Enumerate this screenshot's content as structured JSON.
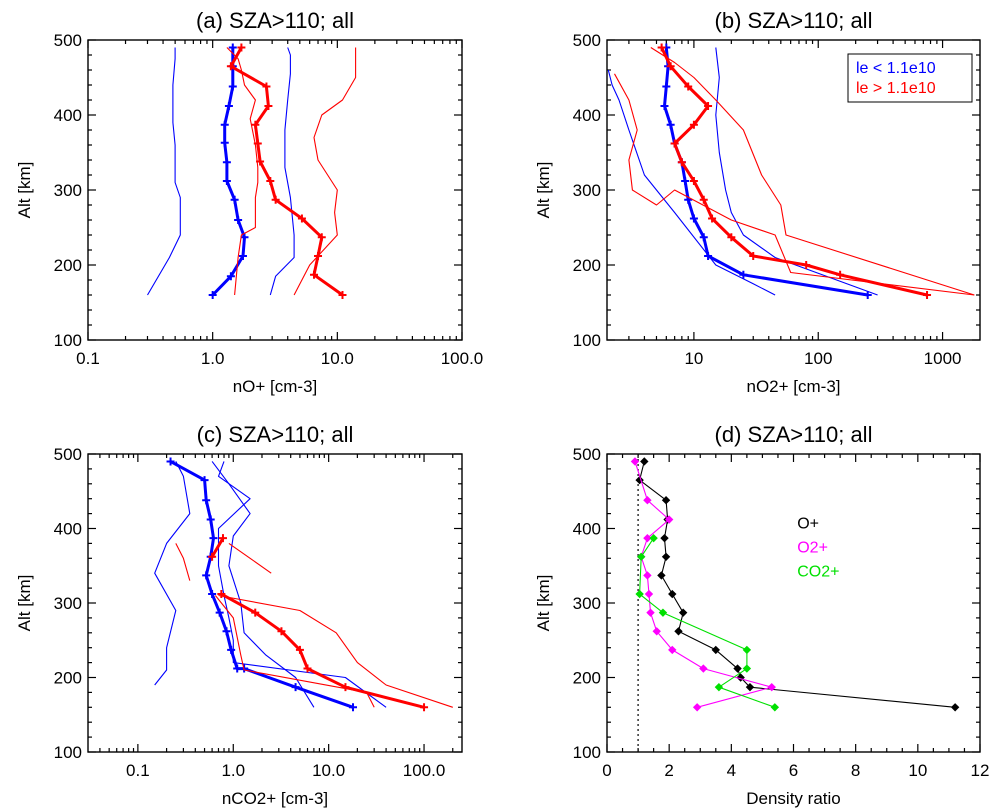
{
  "colors": {
    "blue": "#0000ff",
    "red": "#ff0000",
    "black": "#000000",
    "magenta": "#ff00ff",
    "green": "#00e000"
  },
  "chart_data": [
    {
      "type": "line",
      "title": "(a) SZA>110; all",
      "xlabel": "nO+ [cm-3]",
      "ylabel": "Alt [km]",
      "xscale": "log",
      "xlim": [
        0.1,
        100
      ],
      "ylim": [
        100,
        500
      ],
      "xticks": [
        0.1,
        1,
        10,
        100
      ],
      "xtick_labels": [
        "0.1",
        "1.0",
        "10.0",
        "100.0"
      ],
      "yticks": [
        100,
        200,
        300,
        400,
        500
      ],
      "ytick_labels": [
        "100",
        "200",
        "300",
        "400",
        "500"
      ],
      "series": [
        {
          "color": "blue",
          "style": "thin",
          "markers": false,
          "x": [
            0.3,
            0.45,
            0.55,
            0.55,
            0.5,
            0.5,
            0.48,
            0.48,
            0.5,
            0.5
          ],
          "y": [
            160,
            210,
            240,
            290,
            310,
            360,
            390,
            440,
            475,
            490
          ]
        },
        {
          "color": "blue",
          "style": "thin",
          "markers": false,
          "x": [
            2.9,
            3.2,
            4.5,
            4.5,
            4.2,
            3.8,
            3.8,
            4.0,
            4.2,
            4.2,
            4.0
          ],
          "y": [
            160,
            185,
            210,
            240,
            290,
            330,
            380,
            420,
            455,
            480,
            490
          ]
        },
        {
          "color": "blue",
          "style": "thick",
          "markers": true,
          "x": [
            1.0,
            1.4,
            1.75,
            1.8,
            1.6,
            1.5,
            1.3,
            1.3,
            1.25,
            1.25,
            1.35,
            1.45,
            1.45,
            1.45
          ],
          "y": [
            160,
            185,
            212,
            237,
            260,
            287,
            312,
            337,
            363,
            387,
            412,
            438,
            465,
            490
          ]
        },
        {
          "color": "red",
          "style": "thin",
          "markers": false,
          "x": [
            1.5,
            1.6,
            1.7,
            2.2,
            2.2,
            2.3,
            2.3,
            2.2,
            2.0,
            2.2,
            1.8,
            1.7,
            1.6,
            1.3
          ],
          "y": [
            160,
            210,
            240,
            250,
            290,
            310,
            330,
            360,
            395,
            420,
            440,
            460,
            475,
            490
          ]
        },
        {
          "color": "red",
          "style": "thin",
          "markers": false,
          "x": [
            4.5,
            6.0,
            10.0,
            9.5,
            10.0,
            7.0,
            6.5,
            7.5,
            11.0,
            14.0,
            14.0
          ],
          "y": [
            160,
            200,
            240,
            270,
            300,
            340,
            370,
            400,
            420,
            450,
            490
          ]
        },
        {
          "color": "red",
          "style": "thick",
          "markers": true,
          "x": [
            11.0,
            6.5,
            7.0,
            7.5,
            5.2,
            3.2,
            2.9,
            2.4,
            2.3,
            2.2,
            2.8,
            2.7,
            1.4,
            1.7
          ],
          "y": [
            160,
            187,
            212,
            237,
            262,
            287,
            312,
            338,
            362,
            387,
            412,
            438,
            465,
            490
          ]
        }
      ]
    },
    {
      "type": "line",
      "title": "(b) SZA>110; all",
      "xlabel": "nO2+ [cm-3]",
      "ylabel": "Alt [km]",
      "xscale": "log",
      "xlim": [
        2,
        2000
      ],
      "ylim": [
        100,
        500
      ],
      "xticks": [
        10,
        100,
        1000
      ],
      "xtick_labels": [
        "10",
        "100",
        "1000"
      ],
      "yticks": [
        100,
        200,
        300,
        400,
        500
      ],
      "ytick_labels": [
        "100",
        "200",
        "300",
        "400",
        "500"
      ],
      "legend": {
        "position": "top-right",
        "entries": [
          {
            "label": "le < 1.1e10",
            "color": "blue"
          },
          {
            "label": "le > 1.1e10",
            "color": "red"
          }
        ]
      },
      "series": [
        {
          "color": "blue",
          "style": "thin",
          "markers": false,
          "x": [
            2.05,
            2.2,
            2.5,
            3.0,
            4.0,
            7.0,
            15.0,
            30.0,
            45.0
          ],
          "y": [
            460,
            440,
            420,
            380,
            320,
            270,
            200,
            175,
            160
          ]
        },
        {
          "color": "blue",
          "style": "thin",
          "markers": false,
          "x": [
            15.0,
            16.0,
            15.0,
            16.0,
            18.0,
            20.0,
            25.0,
            45.0,
            300.0
          ],
          "y": [
            490,
            450,
            400,
            350,
            300,
            270,
            240,
            210,
            160
          ]
        },
        {
          "color": "blue",
          "style": "thick",
          "markers": true,
          "x": [
            6.0,
            6.2,
            6.0,
            5.8,
            6.5,
            7.0,
            8.0,
            8.5,
            9.0,
            10.0,
            12.0,
            13.0,
            25.0,
            250.0
          ],
          "y": [
            490,
            465,
            438,
            412,
            387,
            362,
            337,
            312,
            287,
            262,
            237,
            212,
            187,
            160
          ]
        },
        {
          "color": "red",
          "style": "thin",
          "markers": false,
          "x": [
            2.3,
            3.0,
            3.5,
            3.0,
            3.2,
            5.0,
            7.0,
            20.0,
            45.0,
            60.0,
            1800.0
          ],
          "y": [
            455,
            420,
            380,
            340,
            300,
            280,
            300,
            260,
            240,
            190,
            160
          ]
        },
        {
          "color": "red",
          "style": "thin",
          "markers": false,
          "x": [
            4.5,
            7.0,
            10.0,
            15.0,
            25.0,
            35.0,
            50.0,
            55.0,
            1800.0
          ],
          "y": [
            490,
            470,
            450,
            420,
            380,
            320,
            280,
            240,
            160
          ]
        },
        {
          "color": "red",
          "style": "thick",
          "markers": true,
          "x": [
            5.5,
            6.5,
            9.0,
            13.0,
            10.0,
            7.0,
            8.0,
            10.0,
            12.0,
            14.0,
            20.0,
            30.0,
            80.0,
            150.0,
            750.0
          ],
          "y": [
            490,
            465,
            438,
            412,
            387,
            362,
            337,
            312,
            287,
            262,
            237,
            212,
            200,
            187,
            160
          ]
        }
      ]
    },
    {
      "type": "line",
      "title": "(c) SZA>110; all",
      "xlabel": "nCO2+ [cm-3]",
      "ylabel": "Alt [km]",
      "xscale": "log",
      "xlim": [
        0.03,
        250
      ],
      "ylim": [
        100,
        500
      ],
      "xticks": [
        0.1,
        1,
        10,
        100
      ],
      "xtick_labels": [
        "0.1",
        "1.0",
        "10.0",
        "100.0"
      ],
      "yticks": [
        100,
        200,
        300,
        400,
        500
      ],
      "ytick_labels": [
        "100",
        "200",
        "300",
        "400",
        "500"
      ],
      "series": [
        {
          "color": "blue",
          "style": "thin",
          "markers": false,
          "x": [
            0.25,
            0.3,
            0.35,
            0.2,
            0.15,
            0.25,
            0.2,
            0.2,
            0.15
          ],
          "y": [
            490,
            470,
            420,
            380,
            340,
            290,
            240,
            210,
            190
          ]
        },
        {
          "color": "blue",
          "style": "thin",
          "markers": false,
          "x": [
            0.6,
            0.9,
            1.5,
            1.0,
            0.9,
            1.2,
            1.3,
            2.2,
            4.5,
            7.0
          ],
          "y": [
            490,
            460,
            420,
            390,
            350,
            300,
            260,
            230,
            200,
            160
          ]
        },
        {
          "color": "blue",
          "style": "thin",
          "markers": false,
          "x": [
            0.8,
            0.7,
            1.5,
            0.7,
            0.7,
            0.8,
            0.9,
            1.0,
            1.0,
            15.0,
            40.0
          ],
          "y": [
            490,
            470,
            440,
            400,
            350,
            310,
            280,
            250,
            220,
            200,
            160
          ]
        },
        {
          "color": "blue",
          "style": "thick",
          "markers": true,
          "x": [
            0.22,
            0.5,
            0.52,
            0.58,
            0.62,
            0.58,
            0.52,
            0.6,
            0.72,
            0.85,
            0.95,
            1.1,
            1.3,
            4.5,
            18.0
          ],
          "y": [
            490,
            465,
            438,
            412,
            387,
            362,
            337,
            312,
            287,
            262,
            237,
            212,
            212,
            187,
            160
          ]
        },
        {
          "color": "red",
          "style": "thin",
          "markers": false,
          "x": [
            0.25,
            0.3,
            0.35
          ],
          "y": [
            380,
            360,
            330
          ]
        },
        {
          "color": "red",
          "style": "thin",
          "markers": false,
          "x": [
            0.9,
            1.5,
            2.5
          ],
          "y": [
            380,
            360,
            340
          ]
        },
        {
          "color": "red",
          "style": "thin",
          "markers": false,
          "x": [
            0.65,
            1.0,
            1.2,
            1.3,
            25.0,
            30.0
          ],
          "y": [
            310,
            280,
            230,
            210,
            180,
            160
          ]
        },
        {
          "color": "red",
          "style": "thin",
          "markers": false,
          "x": [
            0.7,
            5.0,
            12.0,
            20.0,
            40.0,
            200.0
          ],
          "y": [
            310,
            290,
            260,
            220,
            190,
            160
          ]
        },
        {
          "color": "red",
          "style": "thick",
          "markers": true,
          "x": [
            0.78,
            0.6,
            null,
            0.75,
            1.7,
            3.2,
            5.0,
            6.0,
            15.0,
            100.0
          ],
          "y": [
            387,
            362,
            null,
            312,
            287,
            262,
            237,
            212,
            187,
            160
          ]
        }
      ]
    },
    {
      "type": "line",
      "title": "(d) SZA>110; all",
      "xlabel": "Density ratio",
      "ylabel": "Alt [km]",
      "xscale": "linear",
      "xlim": [
        0,
        12
      ],
      "ylim": [
        100,
        500
      ],
      "xticks": [
        0,
        2,
        4,
        6,
        8,
        10,
        12
      ],
      "xtick_labels": [
        "0",
        "2",
        "4",
        "6",
        "8",
        "10",
        "12"
      ],
      "yticks": [
        100,
        200,
        300,
        400,
        500
      ],
      "ytick_labels": [
        "100",
        "200",
        "300",
        "400",
        "500"
      ],
      "reference_line_x": 1,
      "legend": {
        "position": "right",
        "entries": [
          {
            "label": "O+",
            "color": "black"
          },
          {
            "label": "O2+",
            "color": "magenta"
          },
          {
            "label": "CO2+",
            "color": "green"
          }
        ]
      },
      "series": [
        {
          "color": "black",
          "style": "thin",
          "markers": true,
          "x": [
            1.2,
            1.05,
            1.9,
            1.95,
            1.85,
            1.9,
            1.75,
            2.1,
            2.45,
            2.3,
            3.5,
            4.2,
            4.3,
            4.6,
            11.2
          ],
          "y": [
            490,
            465,
            438,
            412,
            387,
            362,
            337,
            312,
            287,
            262,
            237,
            212,
            200,
            187,
            160
          ]
        },
        {
          "color": "magenta",
          "style": "thin",
          "markers": true,
          "x": [
            0.9,
            1.3,
            2.0,
            1.3,
            1.1,
            1.3,
            1.35,
            1.4,
            1.6,
            2.1,
            3.1,
            5.3,
            2.9
          ],
          "y": [
            490,
            438,
            412,
            387,
            362,
            337,
            312,
            287,
            262,
            237,
            212,
            187,
            160
          ]
        },
        {
          "color": "green",
          "style": "thin",
          "markers": true,
          "x": [
            1.5,
            1.1,
            1.05,
            1.8,
            4.5,
            4.5,
            3.6,
            5.4
          ],
          "y": [
            387,
            362,
            312,
            287,
            237,
            212,
            187,
            160
          ]
        }
      ]
    }
  ]
}
